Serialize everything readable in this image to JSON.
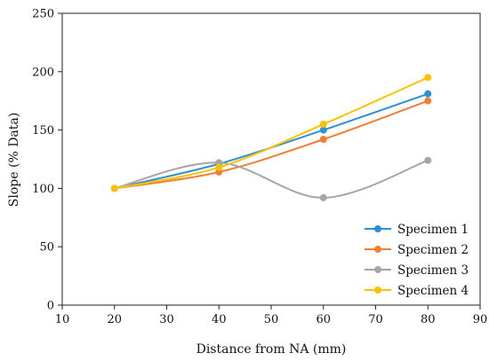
{
  "chart_data": {
    "type": "line",
    "smooth": true,
    "title": "",
    "xlabel": "Distance from NA (mm)",
    "ylabel": "Slope (% Data)",
    "xlim": [
      10,
      90
    ],
    "ylim": [
      0,
      250
    ],
    "xticks": [
      10,
      20,
      30,
      40,
      50,
      60,
      70,
      80,
      90
    ],
    "yticks": [
      0,
      50,
      100,
      150,
      200,
      250
    ],
    "grid": false,
    "legend_position": "bottom-right",
    "series": [
      {
        "name": "Specimen 1",
        "color": "#2E8FD6",
        "x": [
          20,
          40,
          60,
          80
        ],
        "y": [
          100,
          121,
          150,
          181
        ]
      },
      {
        "name": "Specimen 2",
        "color": "#F07F32",
        "x": [
          20,
          40,
          60,
          80
        ],
        "y": [
          100,
          114,
          142,
          175
        ]
      },
      {
        "name": "Specimen 3",
        "color": "#A5A5A5",
        "x": [
          20,
          40,
          60,
          80
        ],
        "y": [
          100,
          122,
          92,
          124
        ]
      },
      {
        "name": "Specimen 4",
        "color": "#FFC000",
        "x": [
          20,
          40,
          60,
          80
        ],
        "y": [
          100,
          118,
          155,
          195
        ]
      }
    ]
  }
}
